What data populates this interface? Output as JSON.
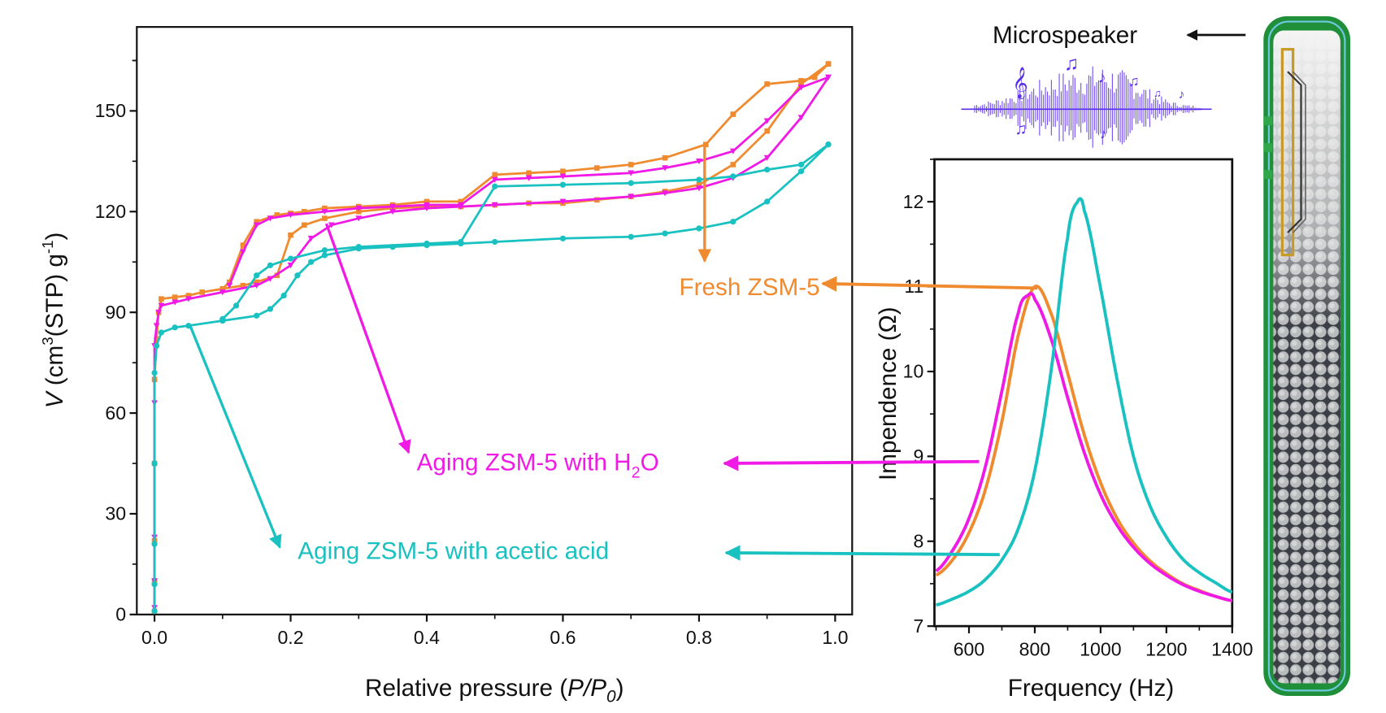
{
  "colors": {
    "fresh": "#ef8a2e",
    "h2o": "#f019e6",
    "acetic": "#19c1c1",
    "axis": "#111111",
    "wave": "#5a2ef0",
    "frame_green": "#1f8f3a"
  },
  "chart_data": [
    {
      "type": "line",
      "title": "",
      "xlabel": "Relative pressure (P/P0)",
      "xlabel_parts": {
        "pre": "Relative pressure (",
        "italic": "P/P",
        "sub": "0",
        "post": ")"
      },
      "ylabel_parts": {
        "v": "V",
        "a": " (cm",
        "sup1": "3",
        "b": "(STP) g",
        "sup2": "-1",
        "c": ")"
      },
      "xlim": [
        -0.026,
        1.025
      ],
      "ylim": [
        0,
        175
      ],
      "xticks": [
        0.0,
        0.2,
        0.4,
        0.6,
        0.8,
        1.0
      ],
      "xtick_labels": [
        "0.0",
        "0.2",
        "0.4",
        "0.6",
        "0.8",
        "1.0"
      ],
      "yticks": [
        0,
        30,
        60,
        90,
        120,
        150
      ],
      "ytick_labels": [
        "0",
        "30",
        "60",
        "90",
        "120",
        "150"
      ],
      "grid": false,
      "series": [
        {
          "name": "Fresh ZSM-5",
          "key": "fresh",
          "marker": "square",
          "x": [
            0,
            0,
            0,
            0,
            0,
            0.003,
            0.006,
            0.01,
            0.03,
            0.05,
            0.07,
            0.1,
            0.13,
            0.15,
            0.18,
            0.2,
            0.22,
            0.25,
            0.3,
            0.35,
            0.4,
            0.45,
            0.5,
            0.55,
            0.6,
            0.65,
            0.7,
            0.75,
            0.8,
            0.85,
            0.9,
            0.95,
            0.99,
            0.99,
            0.97,
            0.95,
            0.9,
            0.85,
            0.81,
            0.75,
            0.7,
            0.65,
            0.6,
            0.55,
            0.5,
            0.45,
            0.4,
            0.35,
            0.3,
            0.25,
            0.22,
            0.2,
            0.18,
            0.15,
            0.13,
            0.11,
            0.1
          ],
          "y": [
            1,
            10,
            22,
            45,
            70,
            82,
            90,
            94,
            94.5,
            95,
            96,
            97,
            98,
            99,
            101,
            113,
            116,
            118,
            120,
            121,
            121.5,
            121.5,
            122,
            122.5,
            122.5,
            123.5,
            124.5,
            126,
            128,
            134,
            144,
            158,
            164,
            164,
            160,
            159,
            158,
            149,
            140,
            136,
            134,
            133,
            132,
            131.5,
            131,
            123,
            123,
            122,
            121.5,
            121,
            120,
            119.5,
            119,
            117,
            110,
            99,
            97
          ]
        },
        {
          "name": "Aging ZSM-5 with H2O",
          "key": "h2o",
          "marker": "triangle-down",
          "x": [
            0,
            0,
            0,
            0,
            0,
            0.003,
            0.006,
            0.01,
            0.03,
            0.05,
            0.1,
            0.15,
            0.17,
            0.2,
            0.23,
            0.26,
            0.3,
            0.35,
            0.4,
            0.45,
            0.5,
            0.6,
            0.7,
            0.75,
            0.8,
            0.85,
            0.9,
            0.95,
            0.99,
            0.99,
            0.95,
            0.9,
            0.85,
            0.8,
            0.75,
            0.7,
            0.6,
            0.55,
            0.5,
            0.45,
            0.4,
            0.35,
            0.3,
            0.25,
            0.2,
            0.17,
            0.15,
            0.13,
            0.11
          ],
          "y": [
            2,
            10,
            23,
            63,
            80,
            86,
            90,
            92,
            93,
            94,
            96,
            98,
            100,
            104,
            112,
            116,
            118,
            120,
            121,
            121.5,
            122,
            123,
            124.5,
            125.5,
            127,
            130,
            136,
            148,
            160,
            160,
            157,
            147,
            138,
            135,
            133,
            131.5,
            130.5,
            130,
            129.5,
            122,
            122,
            121.5,
            121,
            120,
            119,
            118,
            116,
            108,
            98
          ]
        },
        {
          "name": "Aging ZSM-5 with acetic acid",
          "key": "acetic",
          "marker": "circle",
          "x": [
            0,
            0,
            0,
            0,
            0,
            0.003,
            0.01,
            0.03,
            0.05,
            0.1,
            0.15,
            0.17,
            0.19,
            0.21,
            0.23,
            0.25,
            0.3,
            0.35,
            0.4,
            0.45,
            0.5,
            0.6,
            0.7,
            0.75,
            0.8,
            0.85,
            0.9,
            0.95,
            0.99,
            0.99,
            0.95,
            0.9,
            0.85,
            0.8,
            0.7,
            0.6,
            0.5,
            0.45,
            0.4,
            0.3,
            0.25,
            0.2,
            0.17,
            0.15,
            0.12,
            0.1
          ],
          "y": [
            1,
            9,
            21,
            45,
            72,
            80,
            84,
            85.5,
            86,
            87.5,
            89,
            91,
            95,
            101,
            105,
            107,
            109,
            109.5,
            110,
            110.5,
            111,
            112,
            112.5,
            113.5,
            115,
            117,
            123,
            132,
            140,
            140,
            134,
            132.5,
            130.5,
            129.5,
            128.5,
            128,
            127.5,
            111,
            110.5,
            109.5,
            108.5,
            106,
            104,
            101,
            92,
            88
          ]
        }
      ]
    },
    {
      "type": "line",
      "title": "",
      "xlabel": "Frequency (Hz)",
      "ylabel": "Impendence (Ω)",
      "xlim": [
        495,
        1400
      ],
      "ylim": [
        7,
        12.5
      ],
      "xticks": [
        600,
        800,
        1000,
        1200,
        1400
      ],
      "xtick_labels": [
        "600",
        "800",
        "1000",
        "1200",
        "1400"
      ],
      "yticks": [
        7,
        8,
        9,
        10,
        11,
        12
      ],
      "ytick_labels": [
        "7",
        "8",
        "9",
        "10",
        "11",
        "12"
      ],
      "grid": false,
      "series": [
        {
          "name": "Fresh ZSM-5",
          "key": "fresh",
          "x": [
            500,
            550,
            600,
            650,
            700,
            750,
            800,
            850,
            900,
            950,
            1000,
            1050,
            1100,
            1150,
            1200,
            1250,
            1300,
            1350,
            1400
          ],
          "y": [
            7.6,
            7.78,
            8.1,
            8.61,
            9.41,
            10.43,
            11.0,
            10.68,
            9.98,
            9.26,
            8.69,
            8.27,
            7.98,
            7.77,
            7.62,
            7.5,
            7.42,
            7.35,
            7.3
          ]
        },
        {
          "name": "Aging ZSM-5 with H2O",
          "key": "h2o",
          "x": [
            500,
            550,
            600,
            650,
            700,
            750,
            780,
            800,
            850,
            900,
            950,
            1000,
            1050,
            1100,
            1150,
            1200,
            1250,
            1300,
            1350,
            1400
          ],
          "y": [
            7.65,
            7.89,
            8.27,
            8.88,
            9.77,
            10.69,
            10.9,
            10.85,
            10.38,
            9.69,
            9.05,
            8.55,
            8.19,
            7.93,
            7.74,
            7.6,
            7.49,
            7.41,
            7.35,
            7.3
          ]
        },
        {
          "name": "Aging ZSM-5 with acetic acid",
          "key": "acetic",
          "x": [
            500,
            550,
            600,
            650,
            700,
            750,
            800,
            850,
            900,
            930,
            950,
            1000,
            1050,
            1100,
            1150,
            1200,
            1250,
            1300,
            1350,
            1400
          ],
          "y": [
            7.25,
            7.32,
            7.41,
            7.55,
            7.78,
            8.15,
            8.83,
            10.02,
            11.58,
            12.0,
            11.9,
            10.98,
            9.91,
            9.0,
            8.42,
            8.05,
            7.79,
            7.63,
            7.51,
            7.4
          ]
        }
      ]
    }
  ],
  "annotations": {
    "fresh": "Fresh ZSM-5",
    "h2o_pre": "Aging ZSM-5 with H",
    "h2o_sub": "2",
    "h2o_post": "O",
    "acetic": "Aging ZSM-5 with acetic acid",
    "microspeaker": "Microspeaker"
  }
}
